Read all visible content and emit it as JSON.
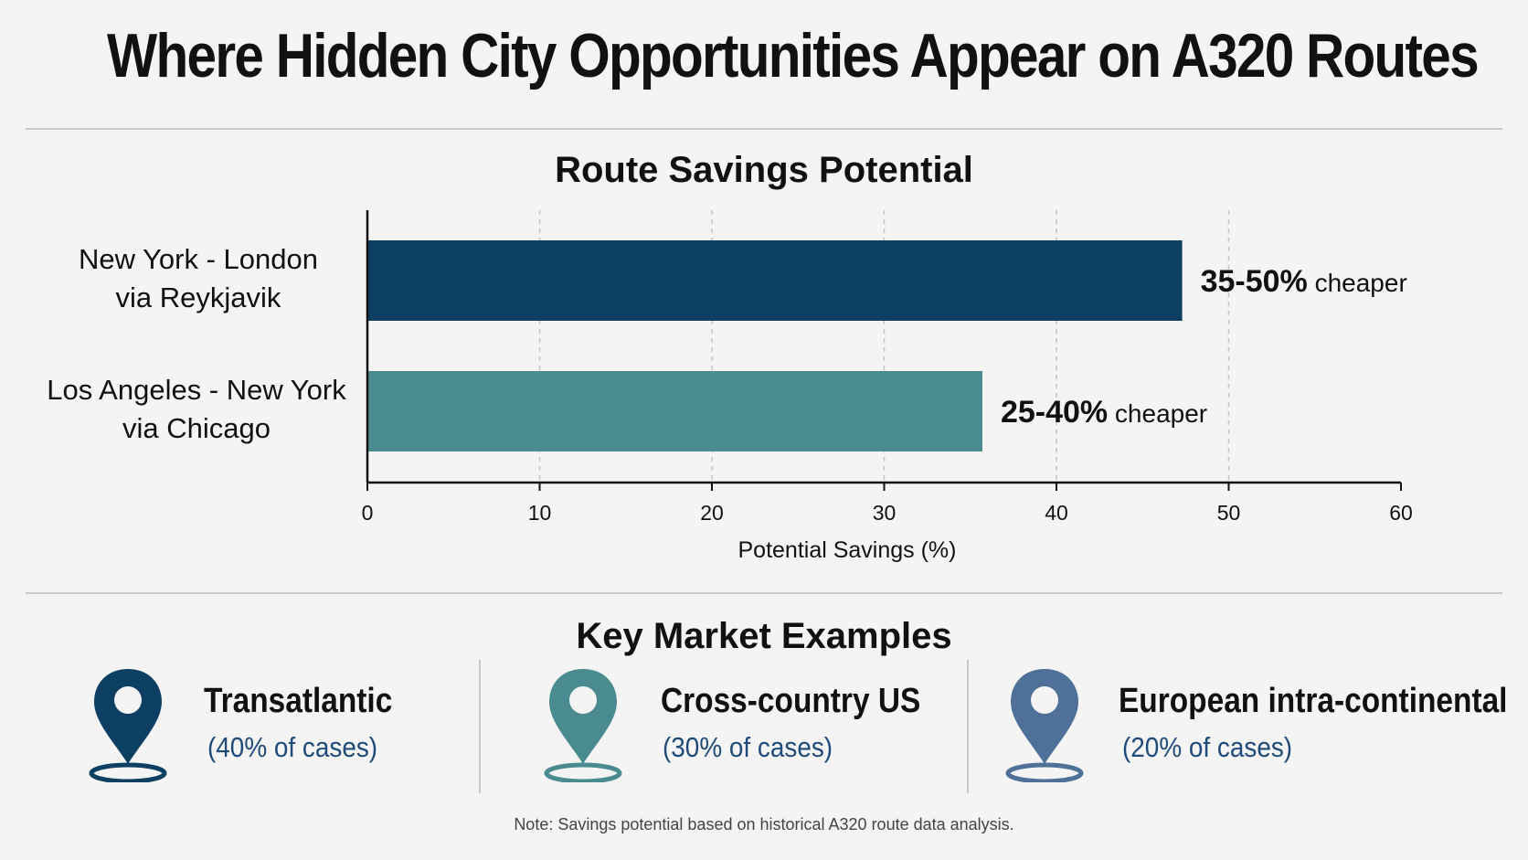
{
  "title": "Where Hidden City Opportunities Appear on A320 Routes",
  "chart_data": {
    "type": "bar",
    "orientation": "horizontal",
    "title": "Route Savings Potential",
    "categories": [
      [
        "New York - London",
        "via Reykjavik"
      ],
      [
        "Los Angeles - New York",
        "via Chicago"
      ]
    ],
    "values": [
      47.3,
      35.7
    ],
    "bar_labels": [
      {
        "range": "35-50%",
        "suffix": " cheaper"
      },
      {
        "range": "25-40%",
        "suffix": " cheaper"
      }
    ],
    "colors": [
      "#0d3f63",
      "#4a8b8f"
    ],
    "xlabel": "Potential Savings (%)",
    "ylabel": "",
    "xlim": [
      0,
      60
    ],
    "xticks": [
      0,
      10,
      20,
      30,
      40,
      50,
      60
    ],
    "grid": "vertical dashed"
  },
  "markets": {
    "title": "Key Market Examples",
    "items": [
      {
        "name": "Transatlantic",
        "share": "(40% of cases)",
        "color": "#0d3f63",
        "icon": "location-pin-icon"
      },
      {
        "name": "Cross-country US",
        "share": "(30% of cases)",
        "color": "#4a8b8f",
        "icon": "location-pin-icon"
      },
      {
        "name": "European intra-continental",
        "share": "(20% of cases)",
        "color": "#4f7199",
        "icon": "location-pin-icon"
      }
    ]
  },
  "note": "Note: Savings potential based on historical A320 route data analysis."
}
